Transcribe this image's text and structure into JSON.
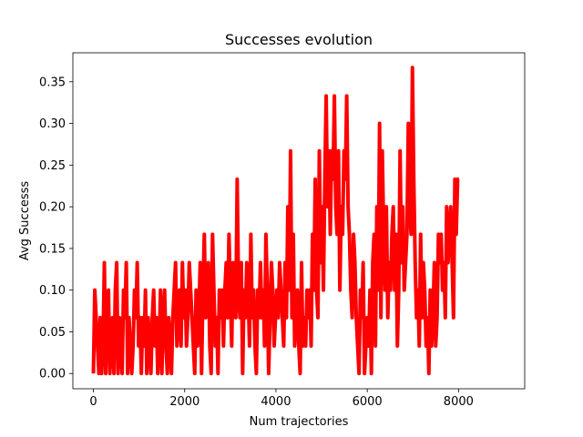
{
  "chart_data": {
    "type": "line",
    "title": "Successes evolution",
    "xlabel": "Num trajectories",
    "ylabel": "Avg Successs",
    "xlim": [
      -450,
      9450
    ],
    "ylim": [
      -0.0183,
      0.3847
    ],
    "x_ticks": [
      0,
      2000,
      4000,
      6000,
      8000
    ],
    "x_tick_labels": [
      "0",
      "2000",
      "4000",
      "6000",
      "8000"
    ],
    "y_ticks": [
      0.0,
      0.05,
      0.1,
      0.15,
      0.2,
      0.25,
      0.3,
      0.35
    ],
    "y_tick_labels": [
      "0.00",
      "0.05",
      "0.10",
      "0.15",
      "0.20",
      "0.25",
      "0.30",
      "0.35"
    ],
    "grid": false,
    "legend": "none",
    "series": [
      {
        "color": "#ff0000",
        "x_start": 0,
        "x_step": 30,
        "values": [
          0.0,
          0.1,
          0.067,
          0.033,
          0.0,
          0.067,
          0.0,
          0.033,
          0.133,
          0.0,
          0.067,
          0.1,
          0.0,
          0.033,
          0.067,
          0.0,
          0.1,
          0.133,
          0.0,
          0.067,
          0.033,
          0.0,
          0.1,
          0.067,
          0.133,
          0.0,
          0.067,
          0.033,
          0.0,
          0.033,
          0.1,
          0.067,
          0.133,
          0.033,
          0.067,
          0.0,
          0.067,
          0.033,
          0.1,
          0.0,
          0.067,
          0.033,
          0.0,
          0.067,
          0.1,
          0.033,
          0.067,
          0.0,
          0.033,
          0.1,
          0.0,
          0.067,
          0.1,
          0.033,
          0.0,
          0.067,
          0.033,
          0.0,
          0.067,
          0.1,
          0.133,
          0.033,
          0.067,
          0.1,
          0.033,
          0.133,
          0.067,
          0.1,
          0.033,
          0.067,
          0.133,
          0.1,
          0.067,
          0.033,
          0.0,
          0.1,
          0.033,
          0.067,
          0.133,
          0.0,
          0.1,
          0.167,
          0.067,
          0.1,
          0.133,
          0.033,
          0.0,
          0.167,
          0.1,
          0.033,
          0.067,
          0.0,
          0.1,
          0.067,
          0.1,
          0.033,
          0.1,
          0.133,
          0.067,
          0.167,
          0.1,
          0.033,
          0.133,
          0.1,
          0.067,
          0.233,
          0.1,
          0.067,
          0.133,
          0.0,
          0.1,
          0.067,
          0.133,
          0.1,
          0.033,
          0.167,
          0.067,
          0.1,
          0.033,
          0.0,
          0.1,
          0.067,
          0.133,
          0.067,
          0.1,
          0.033,
          0.167,
          0.1,
          0.0,
          0.067,
          0.133,
          0.1,
          0.033,
          0.067,
          0.1,
          0.067,
          0.133,
          0.1,
          0.067,
          0.033,
          0.133,
          0.067,
          0.2,
          0.1,
          0.267,
          0.067,
          0.167,
          0.033,
          0.067,
          0.1,
          0.033,
          0.0,
          0.133,
          0.033,
          0.067,
          0.033,
          0.1,
          0.067,
          0.1,
          0.033,
          0.167,
          0.1,
          0.233,
          0.1,
          0.067,
          0.267,
          0.133,
          0.2,
          0.1,
          0.233,
          0.333,
          0.2,
          0.267,
          0.167,
          0.267,
          0.233,
          0.333,
          0.2,
          0.167,
          0.267,
          0.1,
          0.2,
          0.167,
          0.267,
          0.233,
          0.333,
          0.2,
          0.167,
          0.1,
          0.067,
          0.167,
          0.133,
          0.067,
          0.033,
          0.0,
          0.1,
          0.067,
          0.133,
          0.0,
          0.033,
          0.067,
          0.033,
          0.1,
          0.0,
          0.133,
          0.167,
          0.033,
          0.2,
          0.1,
          0.3,
          0.067,
          0.267,
          0.167,
          0.1,
          0.2,
          0.067,
          0.133,
          0.1,
          0.167,
          0.2,
          0.1,
          0.167,
          0.033,
          0.1,
          0.267,
          0.133,
          0.2,
          0.1,
          0.133,
          0.167,
          0.3,
          0.2,
          0.167,
          0.367,
          0.233,
          0.133,
          0.067,
          0.1,
          0.033,
          0.167,
          0.067,
          0.133,
          0.1,
          0.033,
          0.067,
          0.0,
          0.1,
          0.033,
          0.067,
          0.133,
          0.033,
          0.067,
          0.167,
          0.133,
          0.167,
          0.1,
          0.133,
          0.067,
          0.2,
          0.133,
          0.167,
          0.2,
          0.133,
          0.067,
          0.233,
          0.167,
          0.233,
          0.233
        ]
      }
    ]
  }
}
